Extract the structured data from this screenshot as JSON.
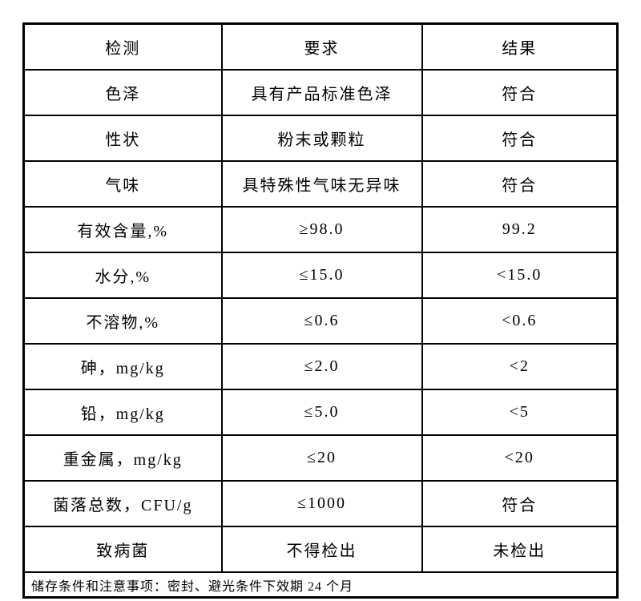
{
  "page": {
    "background_color": "#ffffff",
    "text_color": "#000000",
    "border_color": "#000000"
  },
  "table": {
    "headers": [
      "检测",
      "要求",
      "结果"
    ],
    "rows": [
      [
        "色泽",
        "具有产品标准色泽",
        "符合"
      ],
      [
        "性状",
        "粉末或颗粒",
        "符合"
      ],
      [
        "气味",
        "具特殊性气味无异味",
        "符合"
      ],
      [
        "有效含量,%",
        "≥98.0",
        "99.2"
      ],
      [
        "水分,%",
        "≤15.0",
        "<15.0"
      ],
      [
        "不溶物,%",
        "≤0.6",
        "<0.6"
      ],
      [
        "砷，mg/kg",
        "≤2.0",
        "<2"
      ],
      [
        "铅，mg/kg",
        "≤5.0",
        "<5"
      ],
      [
        "重金属，mg/kg",
        "≤20",
        "<20"
      ],
      [
        "菌落总数，CFU/g",
        "≤1000",
        "符合"
      ],
      [
        "致病菌",
        "不得检出",
        "未检出"
      ]
    ],
    "footer": "储存条件和注意事项：密封、避光条件下效期 24 个月"
  }
}
